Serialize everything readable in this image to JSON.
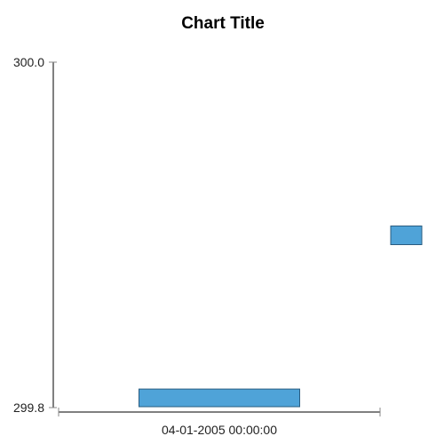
{
  "chart_data": {
    "type": "bar",
    "title": "Chart Title",
    "xlabel": "",
    "ylabel": "",
    "categories": [
      "04-01-2005 00:00:00"
    ],
    "ylim": [
      299.8,
      300.0
    ],
    "y_tick_labels": [
      "300.0",
      "299.8"
    ],
    "y_ticks": [
      300.0,
      299.8
    ],
    "grid": false,
    "legend": "none",
    "series": [
      {
        "values": [
          299.802
        ],
        "color": "#4fa3d8"
      }
    ],
    "extra_marks": [
      {
        "category": "04-01-2005 00:00:00",
        "value": 299.9,
        "color": "#4fa3d8",
        "note_type": "clipped-bar-beyond-plot"
      }
    ]
  }
}
